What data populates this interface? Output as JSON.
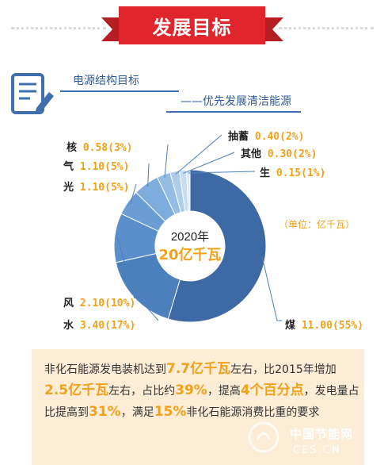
{
  "banner": {
    "title": "发展目标"
  },
  "section": {
    "title": "电源结构目标",
    "subtitle": "——优先发展清洁能源"
  },
  "chart_data": {
    "type": "pie",
    "center_year": "2020年",
    "center_total": "20亿千瓦",
    "unit_note": "（单位：亿千瓦）",
    "slices": [
      {
        "name": "煤",
        "label": "煤 11.00(55%)",
        "value": 11.0,
        "color": "#3d6aa5"
      },
      {
        "name": "水",
        "label": "水 3.40(17%)",
        "value": 3.4,
        "color": "#4b80bd"
      },
      {
        "name": "风",
        "label": "风 2.10(10%)",
        "value": 2.1,
        "color": "#5a8fcb"
      },
      {
        "name": "光",
        "label": "光 1.10(5%)",
        "value": 1.1,
        "color": "#6a9dd4"
      },
      {
        "name": "气",
        "label": "气 1.10(5%)",
        "value": 1.1,
        "color": "#7eacdc"
      },
      {
        "name": "核",
        "label": "核 0.58(3%)",
        "value": 0.58,
        "color": "#94bde4"
      },
      {
        "name": "抽蓄",
        "label": "抽蓄 0.40(2%)",
        "value": 0.4,
        "color": "#aecde9"
      },
      {
        "name": "其他",
        "label": "其他 0.30(2%)",
        "value": 0.3,
        "color": "#c7dcef"
      },
      {
        "name": "生",
        "label": "生 0.15(1%)",
        "value": 0.15,
        "color": "#dbe8f5"
      }
    ],
    "label_color": "#f0a21c",
    "name_color": "#222222",
    "ring_color": "#3d6aa5"
  },
  "description": {
    "p1": "非化石能源发电装机达到",
    "h1": "7.7亿千瓦",
    "p2": "左右，比2015年增加",
    "h2": "2.5亿千瓦",
    "p3": "左右，占比约",
    "h3": "39%",
    "p4": "，提高",
    "h4": "4个百分点",
    "p5": "，发电量占比提高到",
    "h5": "31%",
    "p6": "，满足",
    "h6": "15%",
    "p7": "非化石能源消费比重的要求"
  },
  "watermark": {
    "line1": "中国节能网",
    "line2": "CES.CN"
  }
}
